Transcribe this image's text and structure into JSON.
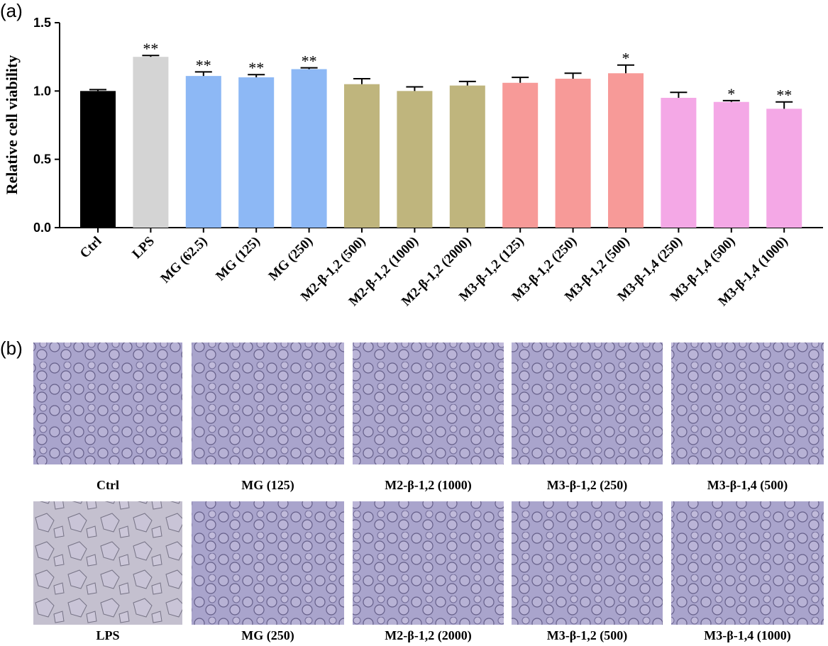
{
  "panel_a_label": "(a)",
  "panel_b_label": "(b)",
  "chart_data": {
    "type": "bar",
    "ylabel": "Relative cell viability",
    "xlabel": "",
    "ylim": [
      0,
      1.5
    ],
    "yticks": [
      "0.0",
      "0.5",
      "1.0",
      "1.5"
    ],
    "grid": false,
    "categories": [
      "Ctrl",
      "LPS",
      "MG (62.5)",
      "MG (125)",
      "MG (250)",
      "M2-β-1,2 (500)",
      "M2-β-1,2 (1000)",
      "M2-β-1,2 (2000)",
      "M3-β-1,2 (125)",
      "M3-β-1,2 (250)",
      "M3-β-1,2 (500)",
      "M3-β-1,4 (250)",
      "M3-β-1,4 (500)",
      "M3-β-1,4 (1000)"
    ],
    "values": [
      1.0,
      1.25,
      1.11,
      1.1,
      1.16,
      1.05,
      1.0,
      1.04,
      1.06,
      1.09,
      1.13,
      0.95,
      0.92,
      0.87
    ],
    "errors": [
      0.01,
      0.01,
      0.03,
      0.02,
      0.01,
      0.04,
      0.03,
      0.03,
      0.04,
      0.04,
      0.06,
      0.04,
      0.01,
      0.05
    ],
    "significance": [
      "",
      "**",
      "**",
      "**",
      "**",
      "",
      "",
      "",
      "",
      "",
      "*",
      "",
      "*",
      "**"
    ],
    "colors": [
      "#000000",
      "#d4d4d4",
      "#8db8f5",
      "#8db8f5",
      "#8db8f5",
      "#bfb57d",
      "#bfb57d",
      "#bfb57d",
      "#f79a98",
      "#f79a98",
      "#f79a98",
      "#f4a8e6",
      "#f4a8e6",
      "#f4a8e6"
    ]
  },
  "micrographs": {
    "top": [
      "Ctrl",
      "MG (125)",
      "M2-β-1,2 (1000)",
      "M3-β-1,2 (250)",
      "M3-β-1,4 (500)"
    ],
    "bottom": [
      "LPS",
      "MG (250)",
      "M2-β-1,2 (2000)",
      "M3-β-1,2 (500)",
      "M3-β-1,4 (1000)"
    ]
  }
}
